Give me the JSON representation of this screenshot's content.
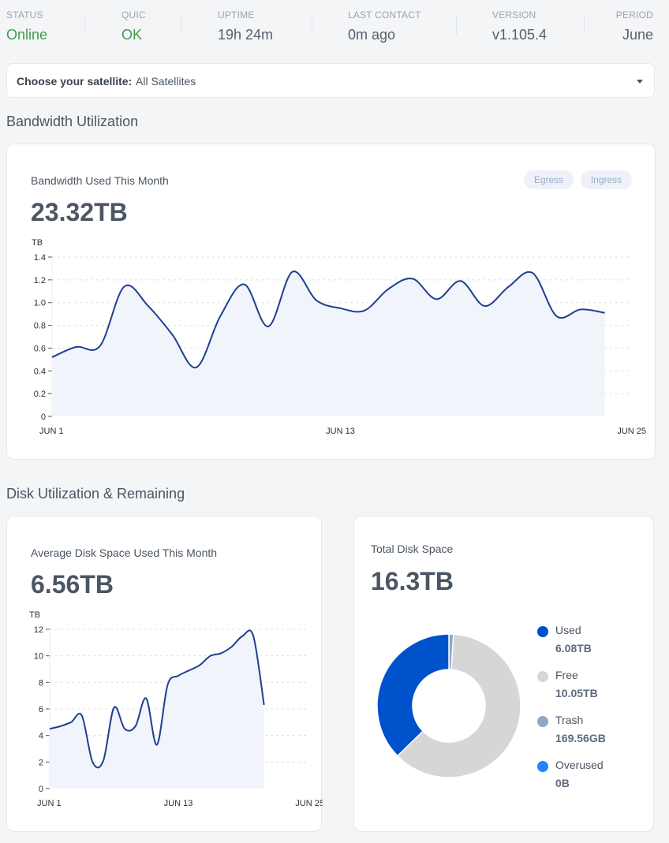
{
  "status_bar": {
    "status": {
      "label": "STATUS",
      "value": "Online"
    },
    "quic": {
      "label": "QUIC",
      "value": "OK"
    },
    "uptime": {
      "label": "UPTIME",
      "value": "19h 24m"
    },
    "last_contact": {
      "label": "LAST CONTACT",
      "value": "0m ago"
    },
    "version": {
      "label": "VERSION",
      "value": "v1.105.4"
    },
    "period": {
      "label": "PERIOD",
      "value": "June"
    }
  },
  "satellite_selector": {
    "label": "Choose your satellite:",
    "value": "All Satellites"
  },
  "bandwidth_section": {
    "title": "Bandwidth Utilization",
    "card_title": "Bandwidth Used This Month",
    "total": "23.32TB",
    "toggle_egress": "Egress",
    "toggle_ingress": "Ingress",
    "unit": "TB"
  },
  "disk_section": {
    "title": "Disk Utilization & Remaining",
    "avg_card_title": "Average Disk Space Used This Month",
    "avg_value": "6.56TB",
    "unit": "TB",
    "total_card_title": "Total Disk Space",
    "total_value": "16.3TB",
    "legend": [
      {
        "name": "Used",
        "value": "6.08TB",
        "color": "#0052cc"
      },
      {
        "name": "Free",
        "value": "10.05TB",
        "color": "#d6d6d6"
      },
      {
        "name": "Trash",
        "value": "169.56GB",
        "color": "#8fa7c6"
      },
      {
        "name": "Overused",
        "value": "0B",
        "color": "#2582ff"
      }
    ]
  },
  "chart_data": [
    {
      "type": "area",
      "title": "Bandwidth Used This Month",
      "ylabel": "TB",
      "ylim": [
        0,
        1.4
      ],
      "yticks": [
        0,
        0.2,
        0.4,
        0.6,
        0.8,
        1.0,
        1.2,
        1.4
      ],
      "ytick_labels": [
        "0",
        "0.2",
        "0.4",
        "0.6",
        "0.8",
        "1.0",
        "1.2",
        "1.4"
      ],
      "xtick_labels": [
        {
          "x": 1,
          "label": "JUN 1"
        },
        {
          "x": 13,
          "label": "JUN 13"
        },
        {
          "x": 25,
          "label": "JUN 25"
        }
      ],
      "x": [
        1,
        2,
        3,
        4,
        5,
        6,
        7,
        8,
        9,
        10,
        11,
        12,
        13,
        14,
        15,
        16,
        17,
        18,
        19,
        20,
        21,
        22,
        23,
        24,
        25
      ],
      "values": [
        0.52,
        0.61,
        0.62,
        1.14,
        0.97,
        0.72,
        0.43,
        0.88,
        1.16,
        0.79,
        1.27,
        1.02,
        0.95,
        0.93,
        1.12,
        1.21,
        1.03,
        1.19,
        0.97,
        1.14,
        1.26,
        0.88,
        0.94,
        0.91,
        0.91
      ],
      "line_end": 24.5,
      "color": "#1f3f8f",
      "fill": "#f1f4fb"
    },
    {
      "type": "area",
      "title": "Average Disk Space Used This Month",
      "ylabel": "TB",
      "ylim": [
        0,
        12
      ],
      "yticks": [
        0,
        2,
        4,
        6,
        8,
        10,
        12
      ],
      "ytick_labels": [
        "0",
        "2",
        "4",
        "6",
        "8",
        "10",
        "12"
      ],
      "xtick_labels": [
        {
          "x": 1,
          "label": "JUN 1"
        },
        {
          "x": 13,
          "label": "JUN 13"
        },
        {
          "x": 25,
          "label": "JUN 25"
        }
      ],
      "x": [
        1,
        2,
        3,
        4,
        5,
        6,
        7,
        8,
        9,
        10,
        11,
        12,
        13,
        14,
        15,
        16,
        17,
        18,
        19,
        20,
        21,
        22,
        23,
        24,
        25
      ],
      "values": [
        4.5,
        4.7,
        5.0,
        5.5,
        2.0,
        2.1,
        6.1,
        4.5,
        4.7,
        6.8,
        3.3,
        7.8,
        8.5,
        8.9,
        9.3,
        10.0,
        10.2,
        10.7,
        11.5,
        11.5,
        6.3,
        6.3,
        6.3,
        6.3,
        6.3
      ],
      "line_end": 21,
      "color": "#1f3f8f",
      "fill": "#f1f4fb"
    },
    {
      "type": "pie",
      "title": "Total Disk Space",
      "categories": [
        "Used",
        "Free",
        "Trash",
        "Overused"
      ],
      "values": [
        6.08,
        10.05,
        0.16956,
        0
      ],
      "colors": [
        "#0052cc",
        "#d6d6d6",
        "#8fa7c6",
        "#2582ff"
      ]
    }
  ]
}
